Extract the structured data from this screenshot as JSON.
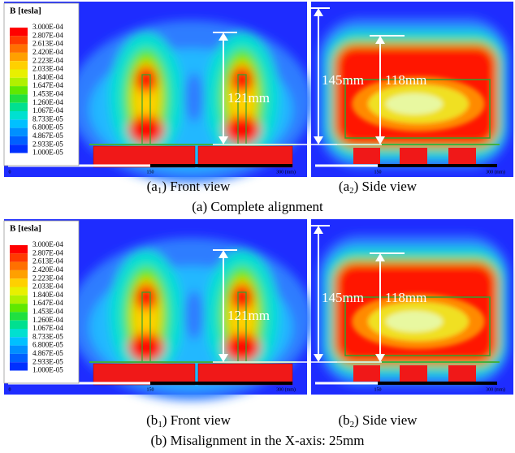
{
  "rows": [
    {
      "legend": {
        "title": "B [tesla]",
        "labels": [
          "3.000E-04",
          "2.807E-04",
          "2.613E-04",
          "2.420E-04",
          "2.223E-04",
          "2.033E-04",
          "1.840E-04",
          "1.647E-04",
          "1.453E-04",
          "1.260E-04",
          "1.067E-04",
          "8.733E-05",
          "6.800E-05",
          "4.867E-05",
          "2.933E-05",
          "1.000E-05"
        ]
      },
      "front": {
        "dimension": "121mm",
        "scale": [
          "0",
          "150",
          "300 (mm)"
        ],
        "caption": {
          "prefix": "(a",
          "sub": "1",
          "suffix": ") Front view"
        }
      },
      "side": {
        "dimensions": [
          "145mm",
          "118mm"
        ],
        "scale": [
          "150",
          "300 (mm)"
        ],
        "caption": {
          "prefix": "(a",
          "sub": "2",
          "suffix": ") Side view"
        }
      },
      "caption": "(a) Complete alignment"
    },
    {
      "legend": {
        "title": "B [tesla]",
        "labels": [
          "3.000E-04",
          "2.807E-04",
          "2.613E-04",
          "2.420E-04",
          "2.223E-04",
          "2.033E-04",
          "1.840E-04",
          "1.647E-04",
          "1.453E-04",
          "1.260E-04",
          "1.067E-04",
          "8.733E-05",
          "6.800E-05",
          "4.867E-05",
          "2.933E-05",
          "1.000E-05"
        ]
      },
      "front": {
        "dimension": "121mm",
        "scale": [
          "0",
          "150",
          "300 (mm)"
        ],
        "caption": {
          "prefix": "(b",
          "sub": "1",
          "suffix": ") Front view"
        }
      },
      "side": {
        "dimensions": [
          "145mm",
          "118mm"
        ],
        "scale": [
          "150",
          "300 (mm)"
        ],
        "caption": {
          "prefix": "(b",
          "sub": "2",
          "suffix": ") Side view"
        }
      },
      "caption": "(b) Misalignment in the X-axis: 25mm"
    }
  ]
}
